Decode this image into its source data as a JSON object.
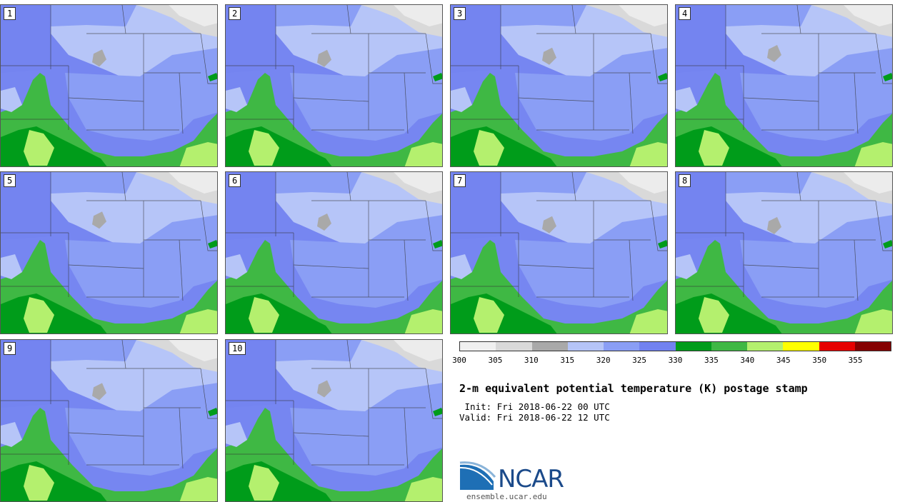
{
  "panels": [
    {
      "label": "1"
    },
    {
      "label": "2"
    },
    {
      "label": "3"
    },
    {
      "label": "4"
    },
    {
      "label": "5"
    },
    {
      "label": "6"
    },
    {
      "label": "7"
    },
    {
      "label": "8"
    },
    {
      "label": "9"
    },
    {
      "label": "10"
    }
  ],
  "colorbar": {
    "colors": [
      "#f0f0f0",
      "#d9d9d9",
      "#a9a9a9",
      "#b5c4f7",
      "#8a9ef5",
      "#7282f0",
      "#009c1a",
      "#3fb844",
      "#b4f06e",
      "#ffff00",
      "#e60000",
      "#850000"
    ],
    "ticks": [
      "300",
      "305",
      "310",
      "315",
      "320",
      "325",
      "330",
      "335",
      "340",
      "345",
      "350",
      "355"
    ]
  },
  "title": "2-m equivalent potential temperature (K) postage stamp",
  "init": " Init: Fri 2018-06-22 00 UTC",
  "valid": "Valid: Fri 2018-06-22 12 UTC",
  "logo": {
    "text": "NCAR",
    "site": "ensemble.ucar.edu"
  }
}
